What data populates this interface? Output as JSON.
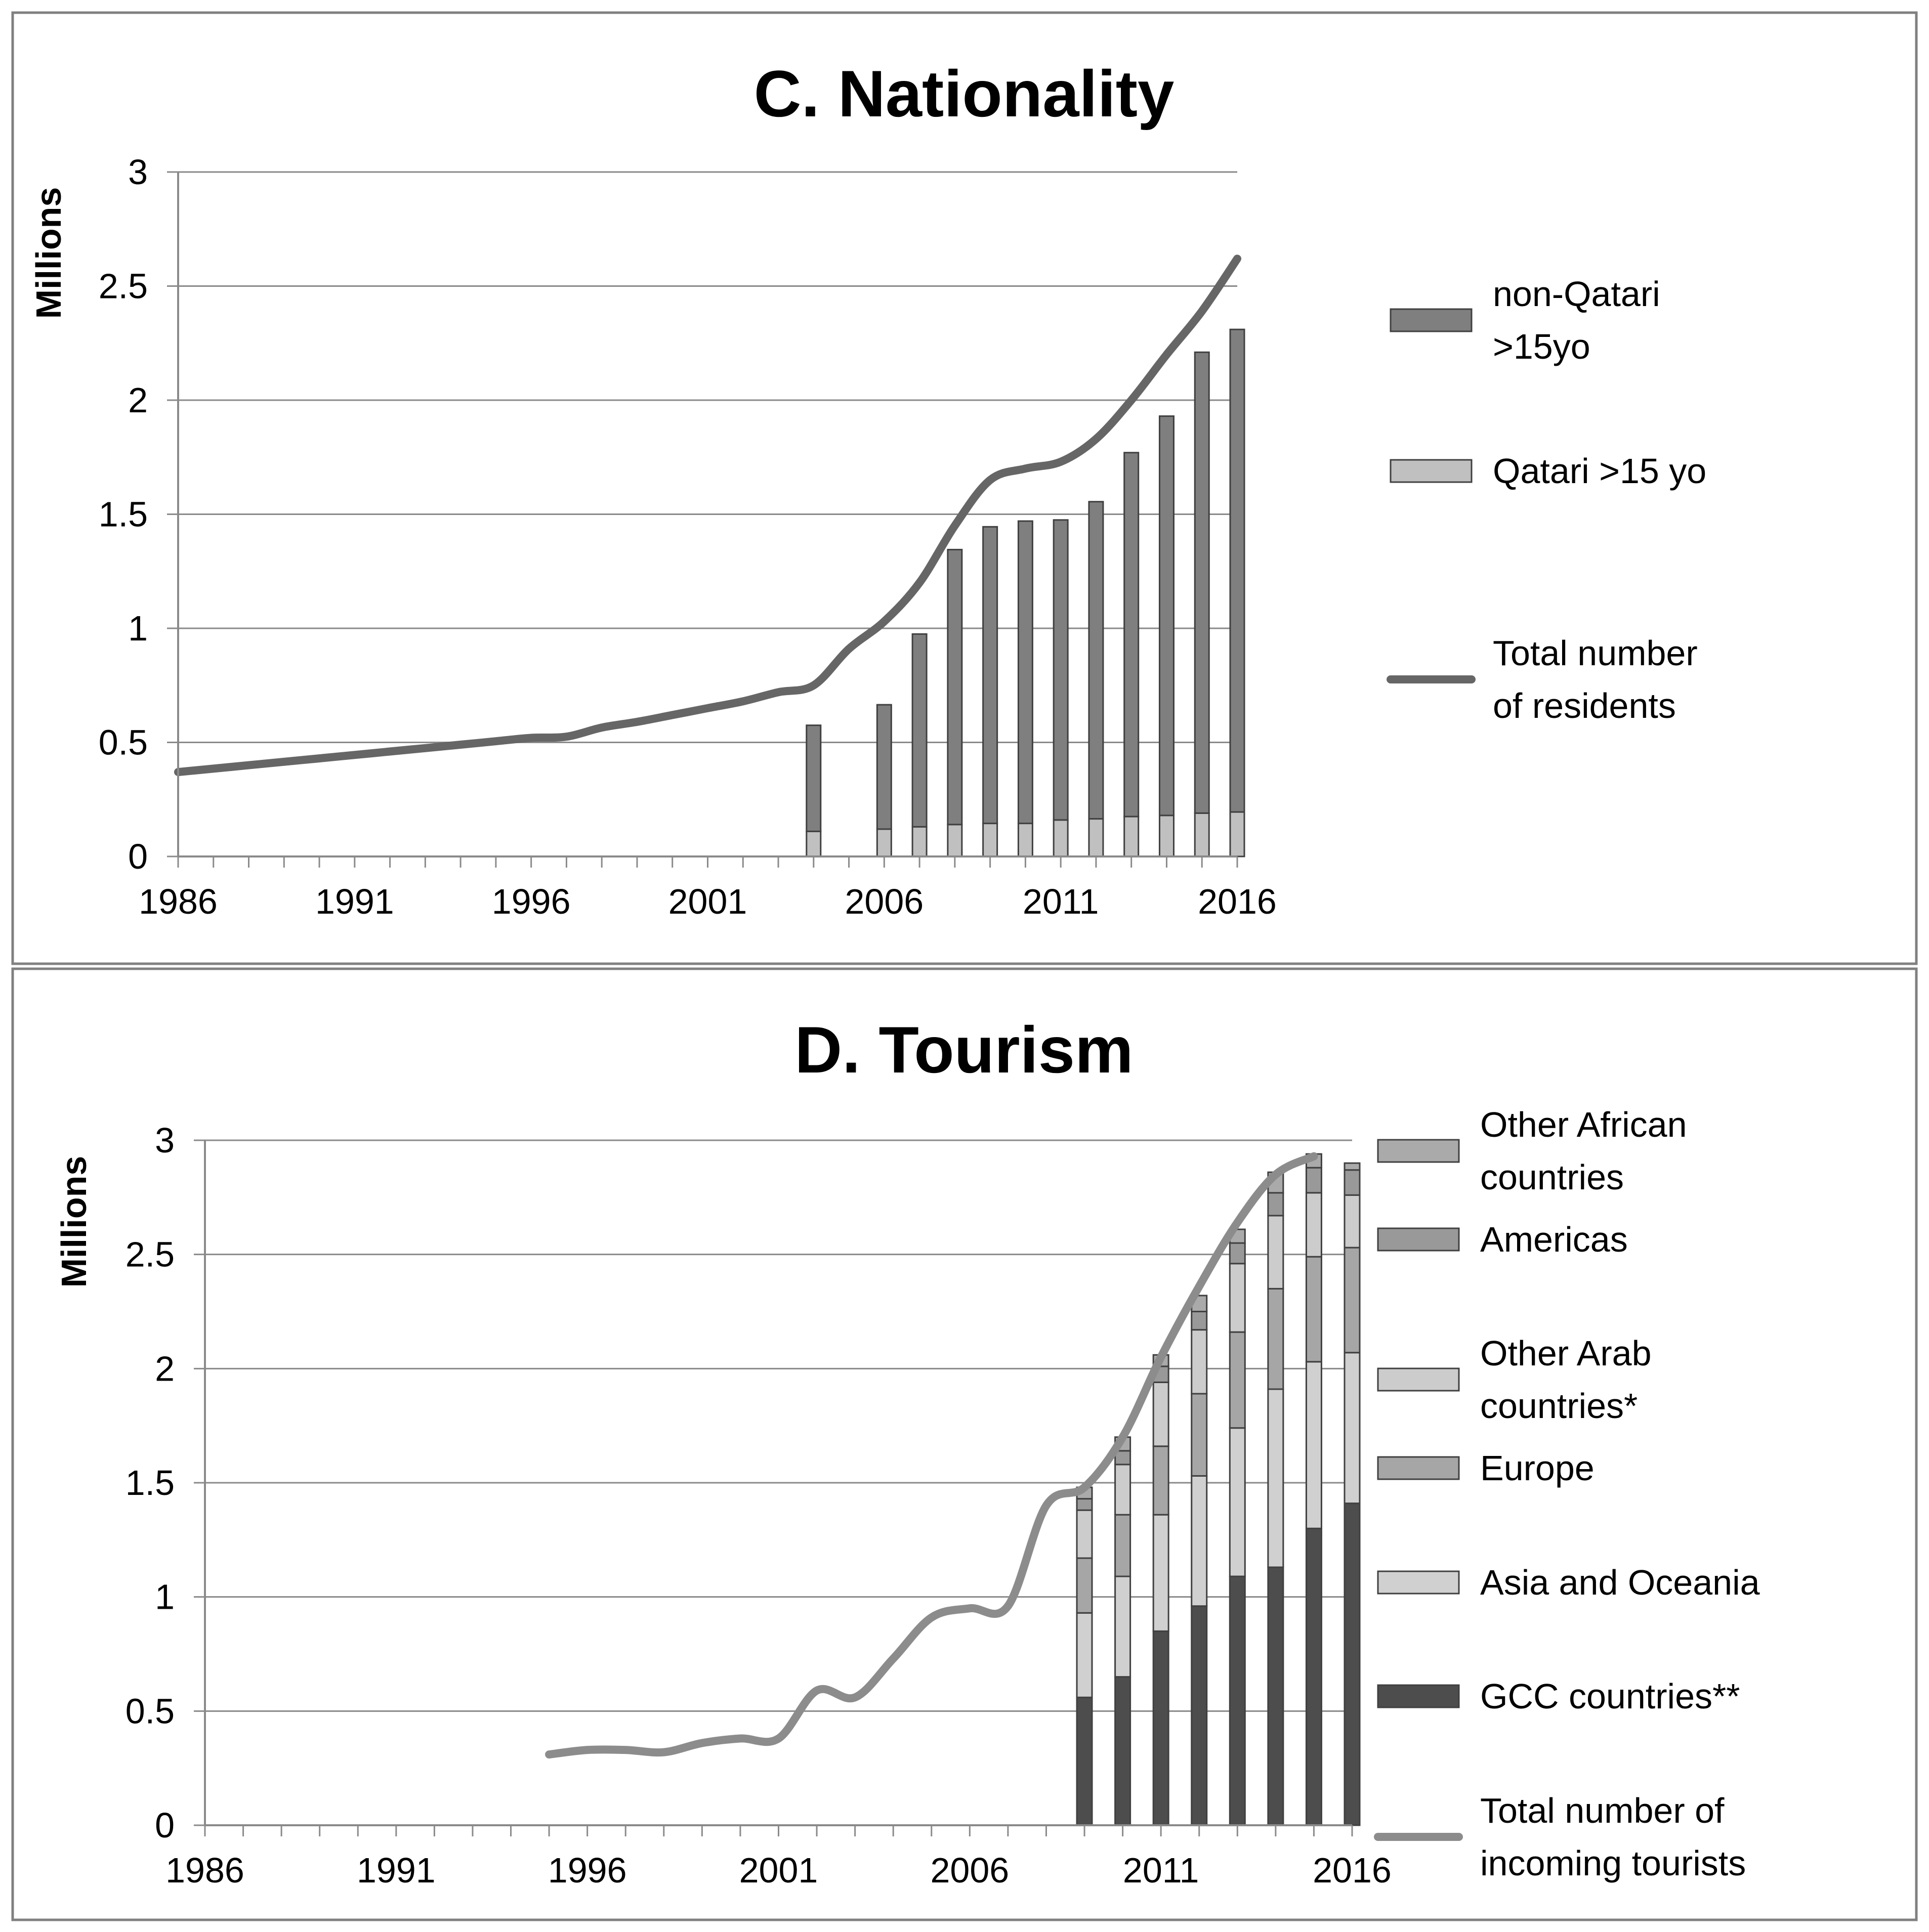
{
  "chart_data": [
    {
      "type": "bar",
      "title": "C. Nationality",
      "ylabel": "Millions",
      "xlabel": "",
      "ylim": [
        0,
        3
      ],
      "xlim": [
        1986,
        2016
      ],
      "yticks": [
        "0",
        "0.5",
        "1",
        "1.5",
        "2",
        "2.5",
        "3"
      ],
      "xticks": [
        "1986",
        "1991",
        "1996",
        "2001",
        "2006",
        "2011",
        "2016"
      ],
      "legend_position": "right",
      "bar_series": [
        {
          "name": "Qatari >15 yo",
          "legend": [
            "Qatari >15 yo"
          ],
          "color": "#c0c0c0",
          "years": [
            2004,
            2006,
            2007,
            2008,
            2009,
            2010,
            2011,
            2012,
            2013,
            2014,
            2015,
            2016
          ],
          "values": [
            0.11,
            0.12,
            0.13,
            0.14,
            0.145,
            0.145,
            0.16,
            0.165,
            0.175,
            0.18,
            0.19,
            0.195
          ]
        },
        {
          "name": "non-Qatari >15yo",
          "legend": [
            "non-Qatari",
            ">15yo"
          ],
          "color": "#7f7f7f",
          "years": [
            2004,
            2006,
            2007,
            2008,
            2009,
            2010,
            2011,
            2012,
            2013,
            2014,
            2015,
            2016
          ],
          "values": [
            0.465,
            0.545,
            0.845,
            1.205,
            1.3,
            1.325,
            1.315,
            1.39,
            1.595,
            1.75,
            2.02,
            2.115
          ]
        }
      ],
      "line_series": [
        {
          "name": "Total number of residents",
          "legend": [
            "Total number",
            "of residents"
          ],
          "color": "#666666",
          "x": [
            1986,
            1987,
            1988,
            1989,
            1990,
            1991,
            1992,
            1993,
            1994,
            1995,
            1996,
            1997,
            1998,
            1999,
            2000,
            2001,
            2002,
            2003,
            2004,
            2005,
            2006,
            2007,
            2008,
            2009,
            2010,
            2011,
            2012,
            2013,
            2014,
            2015,
            2016
          ],
          "y": [
            0.37,
            0.385,
            0.4,
            0.415,
            0.43,
            0.445,
            0.46,
            0.475,
            0.49,
            0.505,
            0.52,
            0.525,
            0.565,
            0.59,
            0.62,
            0.65,
            0.68,
            0.72,
            0.75,
            0.91,
            1.03,
            1.2,
            1.45,
            1.65,
            1.7,
            1.73,
            1.83,
            2.0,
            2.2,
            2.39,
            2.62
          ]
        }
      ]
    },
    {
      "type": "bar",
      "title": "D. Tourism",
      "ylabel": "Millions",
      "xlabel": "",
      "ylim": [
        0,
        3
      ],
      "xlim": [
        1986,
        2016
      ],
      "yticks": [
        "0",
        "0.5",
        "1",
        "1.5",
        "2",
        "2.5",
        "3"
      ],
      "xticks": [
        "1986",
        "1991",
        "1996",
        "2001",
        "2006",
        "2011",
        "2016"
      ],
      "legend_position": "right",
      "bar_series": [
        {
          "name": "GCC countries**",
          "legend": [
            "GCC countries**"
          ],
          "color": "#4d4d4d",
          "years": [
            2009,
            2010,
            2011,
            2012,
            2013,
            2014,
            2015,
            2016
          ],
          "values": [
            0.56,
            0.65,
            0.85,
            0.96,
            1.09,
            1.13,
            1.3,
            1.41
          ]
        },
        {
          "name": "Asia and Oceania",
          "legend": [
            "Asia and Oceania"
          ],
          "color": "#d0d0d0",
          "years": [
            2009,
            2010,
            2011,
            2012,
            2013,
            2014,
            2015,
            2016
          ],
          "values": [
            0.37,
            0.44,
            0.51,
            0.57,
            0.65,
            0.78,
            0.73,
            0.66
          ]
        },
        {
          "name": "Europe",
          "legend": [
            "Europe"
          ],
          "color": "#a6a6a6",
          "years": [
            2009,
            2010,
            2011,
            2012,
            2013,
            2014,
            2015,
            2016
          ],
          "values": [
            0.24,
            0.27,
            0.3,
            0.36,
            0.42,
            0.44,
            0.46,
            0.46
          ]
        },
        {
          "name": "Other Arab countries*",
          "legend": [
            "Other Arab",
            "countries*"
          ],
          "color": "#cccccc",
          "years": [
            2009,
            2010,
            2011,
            2012,
            2013,
            2014,
            2015,
            2016
          ],
          "values": [
            0.21,
            0.22,
            0.28,
            0.28,
            0.3,
            0.32,
            0.28,
            0.23
          ]
        },
        {
          "name": "Americas",
          "legend": [
            "Americas"
          ],
          "color": "#999999",
          "years": [
            2009,
            2010,
            2011,
            2012,
            2013,
            2014,
            2015,
            2016
          ],
          "values": [
            0.05,
            0.06,
            0.07,
            0.08,
            0.09,
            0.1,
            0.11,
            0.11
          ]
        },
        {
          "name": "Other African countries",
          "legend": [
            "Other African",
            "countries"
          ],
          "color": "#aaaaaa",
          "years": [
            2009,
            2010,
            2011,
            2012,
            2013,
            2014,
            2015,
            2016
          ],
          "values": [
            0.05,
            0.06,
            0.05,
            0.07,
            0.06,
            0.09,
            0.06,
            0.03
          ]
        }
      ],
      "line_series": [
        {
          "name": "Total number of incoming tourists",
          "legend": [
            "Total number of",
            "incoming tourists"
          ],
          "color": "#8c8c8c",
          "x": [
            1995,
            1996,
            1997,
            1998,
            1999,
            2000,
            2001,
            2002,
            2003,
            2004,
            2005,
            2006,
            2007,
            2008,
            2009,
            2010,
            2011,
            2012,
            2013,
            2014,
            2015
          ],
          "y": [
            0.31,
            0.33,
            0.33,
            0.32,
            0.36,
            0.38,
            0.38,
            0.59,
            0.56,
            0.73,
            0.91,
            0.95,
            0.96,
            1.4,
            1.48,
            1.7,
            2.05,
            2.36,
            2.64,
            2.85,
            2.93
          ]
        }
      ]
    }
  ]
}
